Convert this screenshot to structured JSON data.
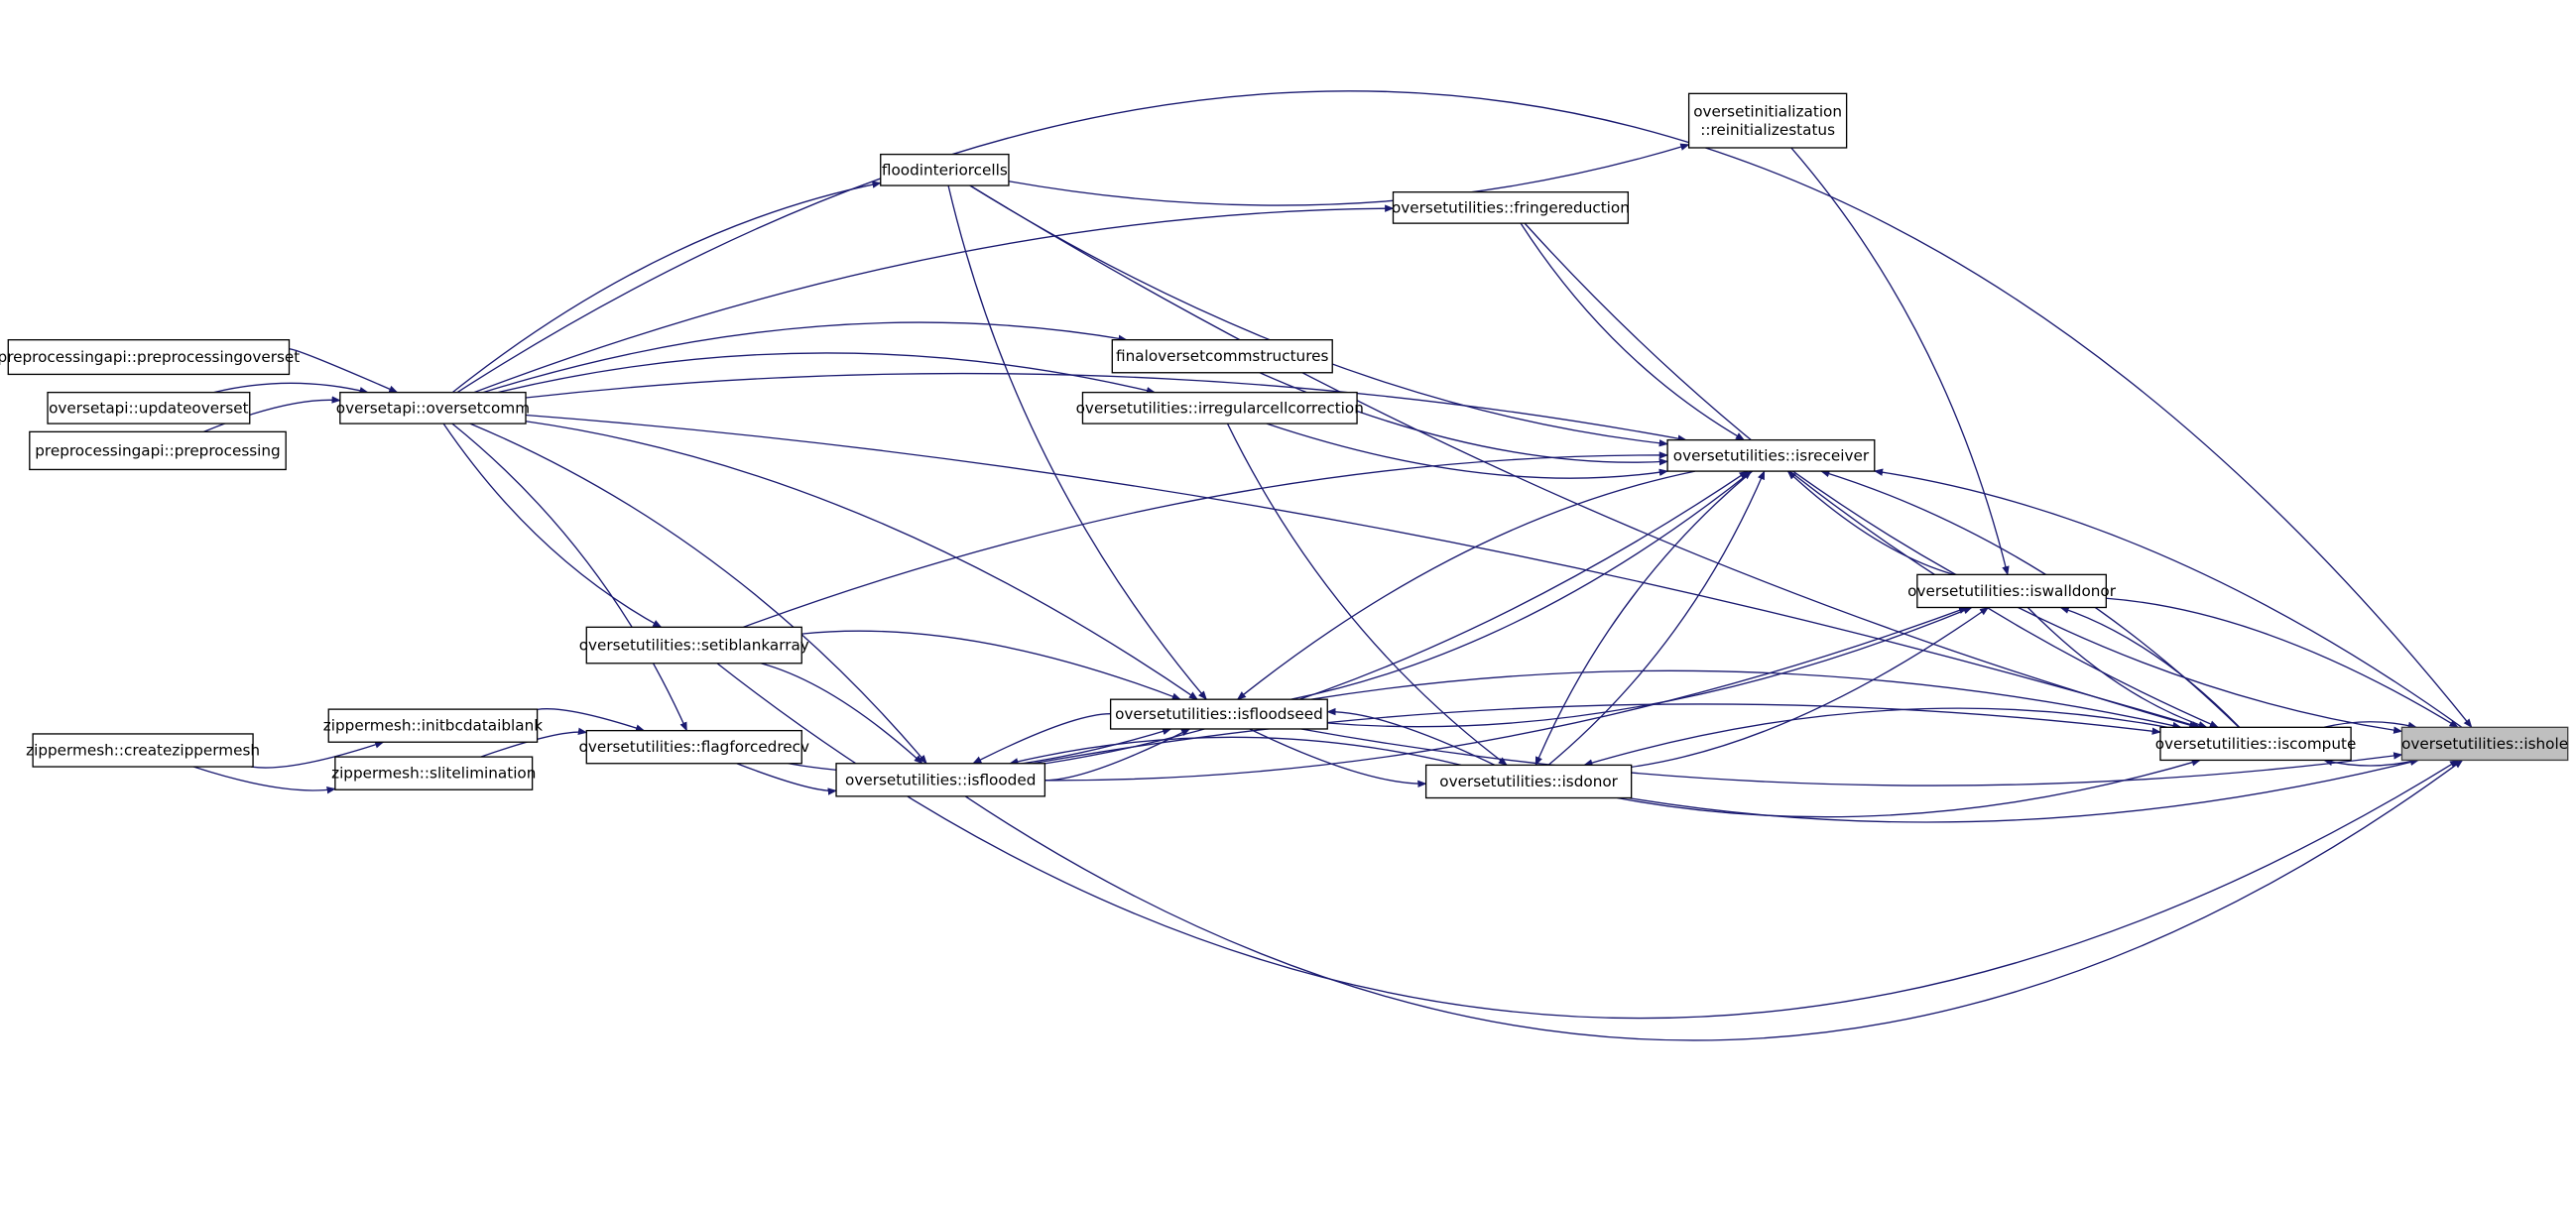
{
  "colors": {
    "edge": "#191970",
    "root_fill": "#bfbfbf",
    "node_fill": "#ffffff"
  },
  "nodes": [
    {
      "id": "ppoverset",
      "label": [
        "preprocessingapi::preprocessingoverset"
      ]
    },
    {
      "id": "updateoverset",
      "label": [
        "oversetapi::updateoverset"
      ]
    },
    {
      "id": "preprocessing",
      "label": [
        "preprocessingapi::preprocessing"
      ]
    },
    {
      "id": "oversetcomm",
      "label": [
        "oversetapi::oversetcomm"
      ]
    },
    {
      "id": "floodinterior",
      "label": [
        "floodinteriorcells"
      ]
    },
    {
      "id": "reinit",
      "label": [
        "oversetinitialization",
        "::reinitializestatus"
      ]
    },
    {
      "id": "fringe",
      "label": [
        "oversetutilities::fringereduction"
      ]
    },
    {
      "id": "finalcomm",
      "label": [
        "finaloversetcommstructures"
      ]
    },
    {
      "id": "irregular",
      "label": [
        "oversetutilities::irregularcellcorrection"
      ]
    },
    {
      "id": "isreceiver",
      "label": [
        "oversetutilities::isreceiver"
      ]
    },
    {
      "id": "iswalldonor",
      "label": [
        "oversetutilities::iswalldonor"
      ]
    },
    {
      "id": "setiblank",
      "label": [
        "oversetutilities::setiblankarray"
      ]
    },
    {
      "id": "isfloodseed",
      "label": [
        "oversetutilities::isfloodseed"
      ]
    },
    {
      "id": "isdonor",
      "label": [
        "oversetutilities::isdonor"
      ]
    },
    {
      "id": "iscompute",
      "label": [
        "oversetutilities::iscompute"
      ]
    },
    {
      "id": "ishole",
      "label": [
        "oversetutilities::ishole"
      ],
      "root": true
    },
    {
      "id": "flagforced",
      "label": [
        "oversetutilities::flagforcedrecv"
      ]
    },
    {
      "id": "initbc",
      "label": [
        "zippermesh::initbcdataiblank"
      ]
    },
    {
      "id": "slit",
      "label": [
        "zippermesh::slitelimination"
      ]
    },
    {
      "id": "createzipper",
      "label": [
        "zippermesh::createzippermesh"
      ]
    },
    {
      "id": "isflooded",
      "label": [
        "oversetutilities::isflooded"
      ]
    }
  ],
  "edges": [
    [
      "ppoverset",
      "oversetcomm"
    ],
    [
      "updateoverset",
      "oversetcomm"
    ],
    [
      "preprocessing",
      "oversetcomm"
    ],
    [
      "createzipper",
      "initbc"
    ],
    [
      "createzipper",
      "slit"
    ],
    [
      "initbc",
      "flagforced"
    ],
    [
      "slit",
      "flagforced"
    ],
    [
      "oversetcomm",
      "floodinterior"
    ],
    [
      "oversetcomm",
      "fringe"
    ],
    [
      "oversetcomm",
      "finalcomm"
    ],
    [
      "oversetcomm",
      "irregular"
    ],
    [
      "oversetcomm",
      "setiblank"
    ],
    [
      "oversetcomm",
      "flagforced"
    ],
    [
      "oversetcomm",
      "isfloodseed"
    ],
    [
      "oversetcomm",
      "isflooded"
    ],
    [
      "oversetcomm",
      "iscompute"
    ],
    [
      "oversetcomm",
      "isreceiver"
    ],
    [
      "oversetcomm",
      "ishole"
    ],
    [
      "floodinterior",
      "reinit"
    ],
    [
      "floodinterior",
      "isfloodseed"
    ],
    [
      "floodinterior",
      "isreceiver"
    ],
    [
      "floodinterior",
      "iscompute"
    ],
    [
      "reinit",
      "iswalldonor"
    ],
    [
      "fringe",
      "isreceiver"
    ],
    [
      "fringe",
      "iscompute"
    ],
    [
      "finalcomm",
      "isreceiver"
    ],
    [
      "irregular",
      "isreceiver"
    ],
    [
      "irregular",
      "isdonor"
    ],
    [
      "setiblank",
      "isreceiver"
    ],
    [
      "setiblank",
      "isfloodseed"
    ],
    [
      "setiblank",
      "isflooded"
    ],
    [
      "setiblank",
      "ishole"
    ],
    [
      "flagforced",
      "isfloodseed"
    ],
    [
      "flagforced",
      "isflooded"
    ],
    [
      "isflooded",
      "isfloodseed"
    ],
    [
      "isfloodseed",
      "isflooded"
    ],
    [
      "isflooded",
      "isreceiver"
    ],
    [
      "isfloodseed",
      "isreceiver"
    ],
    [
      "isreceiver",
      "isfloodseed"
    ],
    [
      "isdonor",
      "isfloodseed"
    ],
    [
      "isfloodseed",
      "isdonor"
    ],
    [
      "isdonor",
      "isflooded"
    ],
    [
      "isdonor",
      "isreceiver"
    ],
    [
      "isreceiver",
      "isdonor"
    ],
    [
      "iswalldonor",
      "isreceiver"
    ],
    [
      "isfloodseed",
      "iswalldonor"
    ],
    [
      "isdonor",
      "iswalldonor"
    ],
    [
      "isflooded",
      "iswalldonor"
    ],
    [
      "iscompute",
      "isreceiver"
    ],
    [
      "iscompute",
      "iswalldonor"
    ],
    [
      "iswalldonor",
      "iscompute"
    ],
    [
      "iscompute",
      "isdonor"
    ],
    [
      "isdonor",
      "iscompute"
    ],
    [
      "isflooded",
      "iscompute"
    ],
    [
      "isfloodseed",
      "iscompute"
    ],
    [
      "ishole",
      "iscompute"
    ],
    [
      "iscompute",
      "ishole"
    ],
    [
      "ishole",
      "isreceiver"
    ],
    [
      "isreceiver",
      "ishole"
    ],
    [
      "iswalldonor",
      "ishole"
    ],
    [
      "isdonor",
      "ishole"
    ],
    [
      "isflooded",
      "ishole"
    ],
    [
      "isfloodseed",
      "ishole"
    ]
  ]
}
